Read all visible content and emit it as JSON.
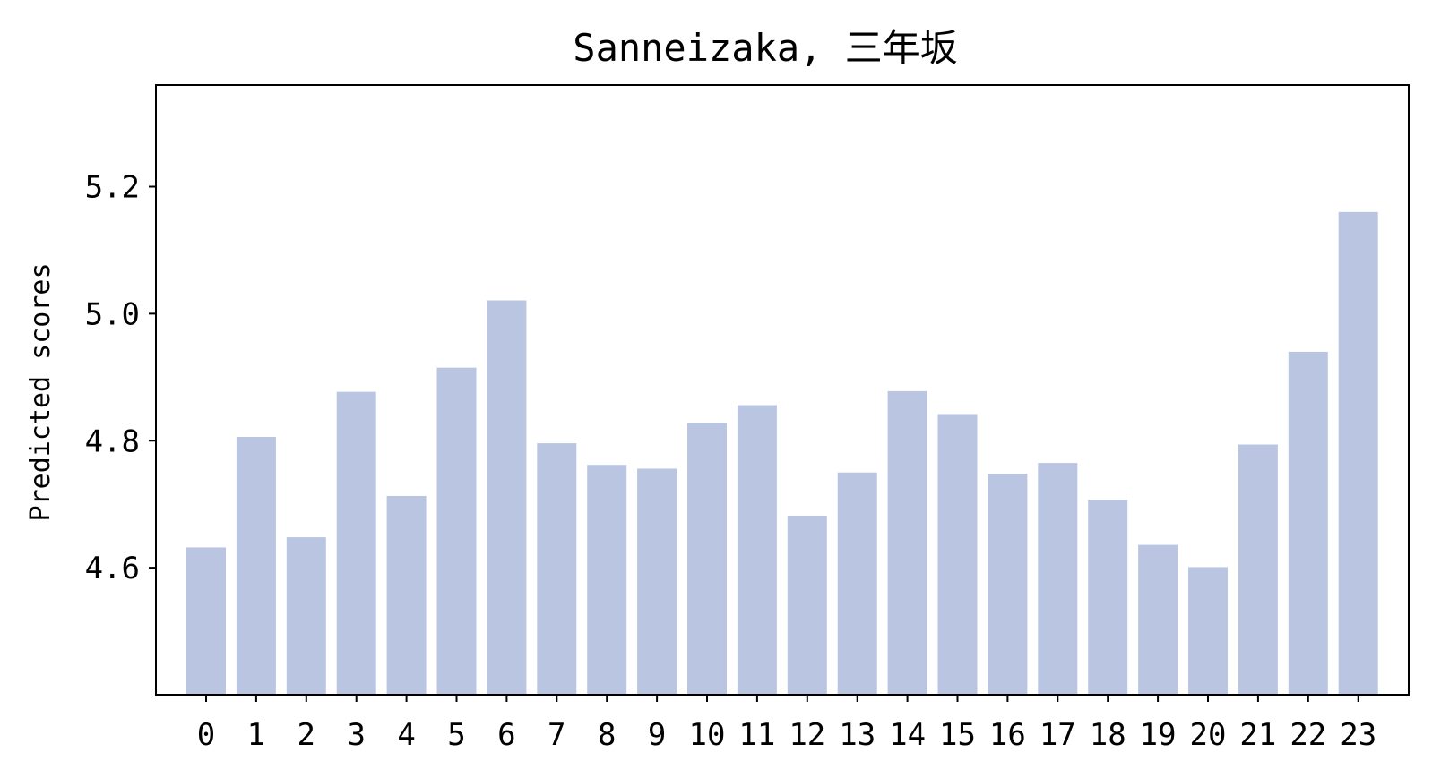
{
  "chart_data": {
    "type": "bar",
    "title": "Sanneizaka, 三年坂",
    "xlabel": "",
    "ylabel": "Predicted scores",
    "categories": [
      "0",
      "1",
      "2",
      "3",
      "4",
      "5",
      "6",
      "7",
      "8",
      "9",
      "10",
      "11",
      "12",
      "13",
      "14",
      "15",
      "16",
      "17",
      "18",
      "19",
      "20",
      "21",
      "22",
      "23"
    ],
    "values": [
      4.632,
      4.806,
      4.648,
      4.877,
      4.713,
      4.915,
      5.021,
      4.796,
      4.762,
      4.756,
      4.828,
      4.856,
      4.682,
      4.75,
      4.878,
      4.842,
      4.748,
      4.765,
      4.707,
      4.636,
      4.601,
      4.794,
      4.94,
      5.16
    ],
    "ylim": [
      4.4,
      5.36
    ],
    "yticks": [
      "4.6",
      "4.8",
      "5.0",
      "5.2"
    ],
    "bar_color": "#bac6e1",
    "grid": false,
    "legend": "none"
  }
}
